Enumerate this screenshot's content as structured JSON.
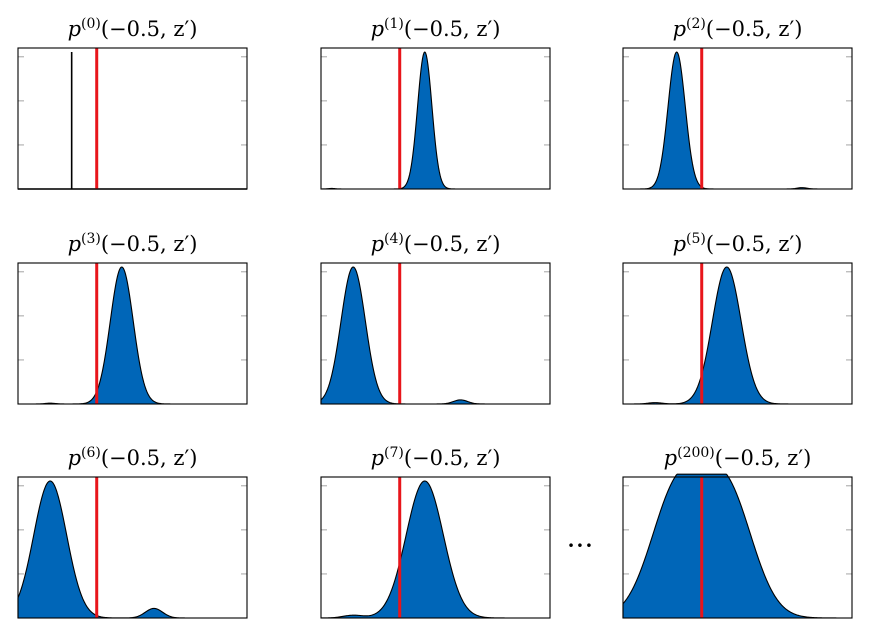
{
  "colors": {
    "fill": "#0066b8",
    "stroke": "#000000",
    "marker": "#e8151b",
    "tick": "#9a9a9a"
  },
  "ellipsis": "···",
  "chart_data": [
    {
      "type": "area",
      "title": {
        "base": "p",
        "sup": "(0)",
        "rest": "(−0.5, z′)"
      },
      "xlim": [
        -1.6,
        1.6
      ],
      "ylim": [
        0,
        1
      ],
      "marker_x": -0.5,
      "spike": true,
      "components": [
        {
          "mu": -0.85,
          "sigma": 0.008,
          "amp": 1.0
        }
      ]
    },
    {
      "type": "area",
      "title": {
        "base": "p",
        "sup": "(1)",
        "rest": "(−0.5, z′)"
      },
      "xlim": [
        -1.6,
        1.6
      ],
      "ylim": [
        0,
        1
      ],
      "marker_x": -0.5,
      "components": [
        {
          "mu": -0.15,
          "sigma": 0.1,
          "amp": 1.0
        },
        {
          "mu": -1.45,
          "sigma": 0.05,
          "amp": 0.004
        }
      ]
    },
    {
      "type": "area",
      "title": {
        "base": "p",
        "sup": "(2)",
        "rest": "(−0.5, z′)"
      },
      "xlim": [
        -1.6,
        1.6
      ],
      "ylim": [
        0,
        1
      ],
      "marker_x": -0.5,
      "components": [
        {
          "mu": -0.85,
          "sigma": 0.12,
          "amp": 1.0
        },
        {
          "mu": 0.9,
          "sigma": 0.07,
          "amp": 0.01
        }
      ]
    },
    {
      "type": "area",
      "title": {
        "base": "p",
        "sup": "(3)",
        "rest": "(−0.5, z′)"
      },
      "xlim": [
        -1.6,
        1.6
      ],
      "ylim": [
        0,
        1
      ],
      "marker_x": -0.5,
      "components": [
        {
          "mu": -0.15,
          "sigma": 0.16,
          "amp": 1.0
        },
        {
          "mu": -1.15,
          "sigma": 0.07,
          "amp": 0.006
        }
      ]
    },
    {
      "type": "area",
      "title": {
        "base": "p",
        "sup": "(4)",
        "rest": "(−0.5, z′)"
      },
      "xlim": [
        -1.6,
        1.6
      ],
      "ylim": [
        0,
        1
      ],
      "marker_x": -0.5,
      "components": [
        {
          "mu": -1.15,
          "sigma": 0.17,
          "amp": 1.0
        },
        {
          "mu": 0.35,
          "sigma": 0.1,
          "amp": 0.03
        }
      ]
    },
    {
      "type": "area",
      "title": {
        "base": "p",
        "sup": "(5)",
        "rest": "(−0.5, z′)"
      },
      "xlim": [
        -1.6,
        1.6
      ],
      "ylim": [
        0,
        1
      ],
      "marker_x": -0.5,
      "components": [
        {
          "mu": -0.15,
          "sigma": 0.2,
          "amp": 1.0
        },
        {
          "mu": -1.15,
          "sigma": 0.1,
          "amp": 0.01
        }
      ]
    },
    {
      "type": "area",
      "title": {
        "base": "p",
        "sup": "(6)",
        "rest": "(−0.5, z′)"
      },
      "xlim": [
        -1.6,
        1.6
      ],
      "ylim": [
        0,
        1
      ],
      "marker_x": -0.5,
      "components": [
        {
          "mu": -1.15,
          "sigma": 0.23,
          "amp": 1.0
        },
        {
          "mu": 0.3,
          "sigma": 0.12,
          "amp": 0.07
        }
      ]
    },
    {
      "type": "area",
      "title": {
        "base": "p",
        "sup": "(7)",
        "rest": "(−0.5, z′)"
      },
      "xlim": [
        -1.6,
        1.6
      ],
      "ylim": [
        0,
        1
      ],
      "marker_x": -0.5,
      "components": [
        {
          "mu": -0.15,
          "sigma": 0.26,
          "amp": 1.0
        },
        {
          "mu": -1.15,
          "sigma": 0.14,
          "amp": 0.02
        }
      ]
    },
    {
      "type": "area",
      "title": {
        "base": "p",
        "sup": "(200)",
        "rest": "(−0.5, z′)"
      },
      "xlim": [
        -1.6,
        1.6
      ],
      "ylim": [
        0,
        1
      ],
      "marker_x": -0.5,
      "components": [
        {
          "mu": -0.85,
          "sigma": 0.36,
          "amp": 0.91
        },
        {
          "mu": -0.15,
          "sigma": 0.36,
          "amp": 0.91
        }
      ]
    }
  ]
}
